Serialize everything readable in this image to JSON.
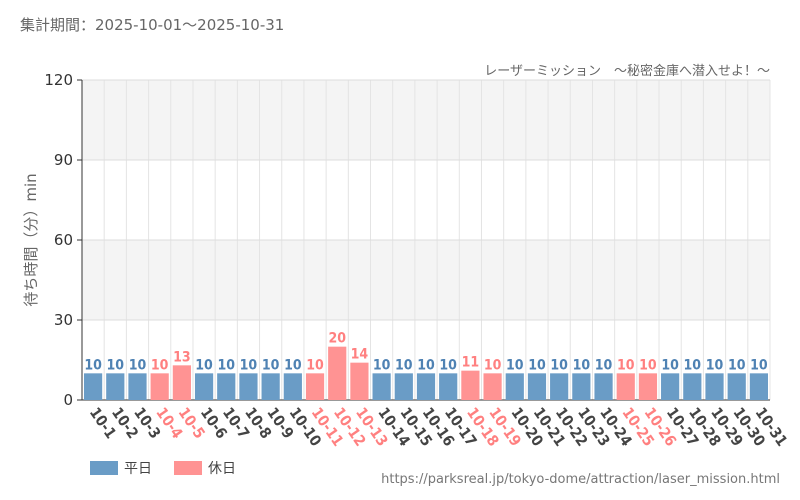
{
  "header": {
    "period": "集計期間：2025-10-01〜2025-10-31",
    "attraction": "レーザーミッション　〜秘密金庫へ潜入せよ！〜"
  },
  "footer": {
    "url": "https://parksreal.jp/tokyo-dome/attraction/laser_mission.html"
  },
  "legend": {
    "weekday": "平日",
    "holiday": "休日"
  },
  "colors": {
    "weekday": "#6a9cc6",
    "holiday": "#ff9393",
    "weekday_text": "#4f82b3",
    "holiday_text": "#ff8080"
  },
  "chart_data": {
    "type": "bar",
    "ylabel": "待ち時間（分）min",
    "ylim": [
      0,
      120
    ],
    "yticks": [
      0,
      30,
      60,
      90,
      120
    ],
    "grid": true,
    "legend_position": "bottom-left",
    "categories": [
      "10-1",
      "10-2",
      "10-3",
      "10-4",
      "10-5",
      "10-6",
      "10-7",
      "10-8",
      "10-9",
      "10-10",
      "10-11",
      "10-12",
      "10-13",
      "10-14",
      "10-15",
      "10-16",
      "10-17",
      "10-18",
      "10-19",
      "10-20",
      "10-21",
      "10-22",
      "10-23",
      "10-24",
      "10-25",
      "10-26",
      "10-27",
      "10-28",
      "10-29",
      "10-30",
      "10-31"
    ],
    "values": [
      10,
      10,
      10,
      10,
      13,
      10,
      10,
      10,
      10,
      10,
      10,
      20,
      14,
      10,
      10,
      10,
      10,
      11,
      10,
      10,
      10,
      10,
      10,
      10,
      10,
      10,
      10,
      10,
      10,
      10,
      10
    ],
    "day_type": [
      "平日",
      "平日",
      "平日",
      "休日",
      "休日",
      "平日",
      "平日",
      "平日",
      "平日",
      "平日",
      "休日",
      "休日",
      "休日",
      "平日",
      "平日",
      "平日",
      "平日",
      "休日",
      "休日",
      "平日",
      "平日",
      "平日",
      "平日",
      "平日",
      "休日",
      "休日",
      "平日",
      "平日",
      "平日",
      "平日",
      "平日"
    ]
  }
}
